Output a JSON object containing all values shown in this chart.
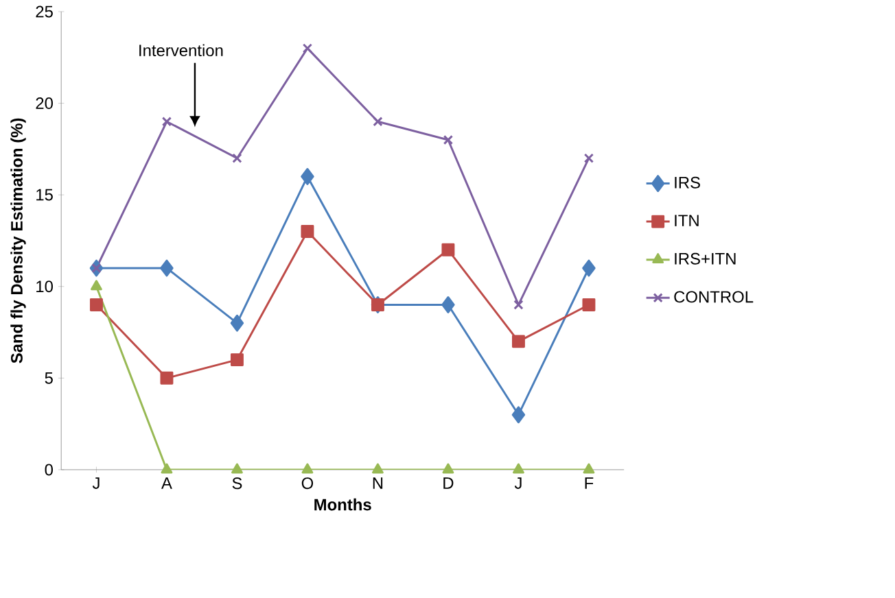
{
  "chart_data": {
    "type": "line",
    "xlabel": "Months",
    "ylabel": "Sand fly Density Estimation (%)",
    "categories": [
      "J",
      "A",
      "S",
      "O",
      "N",
      "D",
      "J",
      "F"
    ],
    "series": [
      {
        "name": "IRS",
        "color": "#4a7ebb",
        "marker": "diamond",
        "values": [
          11,
          11,
          8,
          16,
          9,
          9,
          3,
          11
        ]
      },
      {
        "name": "ITN",
        "color": "#be4b48",
        "marker": "square",
        "values": [
          9,
          5,
          6,
          13,
          9,
          12,
          7,
          9
        ]
      },
      {
        "name": "IRS+ITN",
        "color": "#98b954",
        "marker": "triangle",
        "values": [
          10,
          0,
          0,
          0,
          0,
          0,
          0,
          0
        ]
      },
      {
        "name": "CONTROL",
        "color": "#7d60a0",
        "marker": "cross",
        "values": [
          11,
          19,
          17,
          23,
          19,
          18,
          9,
          17
        ]
      }
    ],
    "annotations": [
      "Intervention"
    ],
    "ylim": [
      0,
      25
    ],
    "yticks": [
      0,
      5,
      10,
      15,
      20,
      25
    ],
    "grid": false,
    "legend": "right",
    "line_style": "solid"
  }
}
